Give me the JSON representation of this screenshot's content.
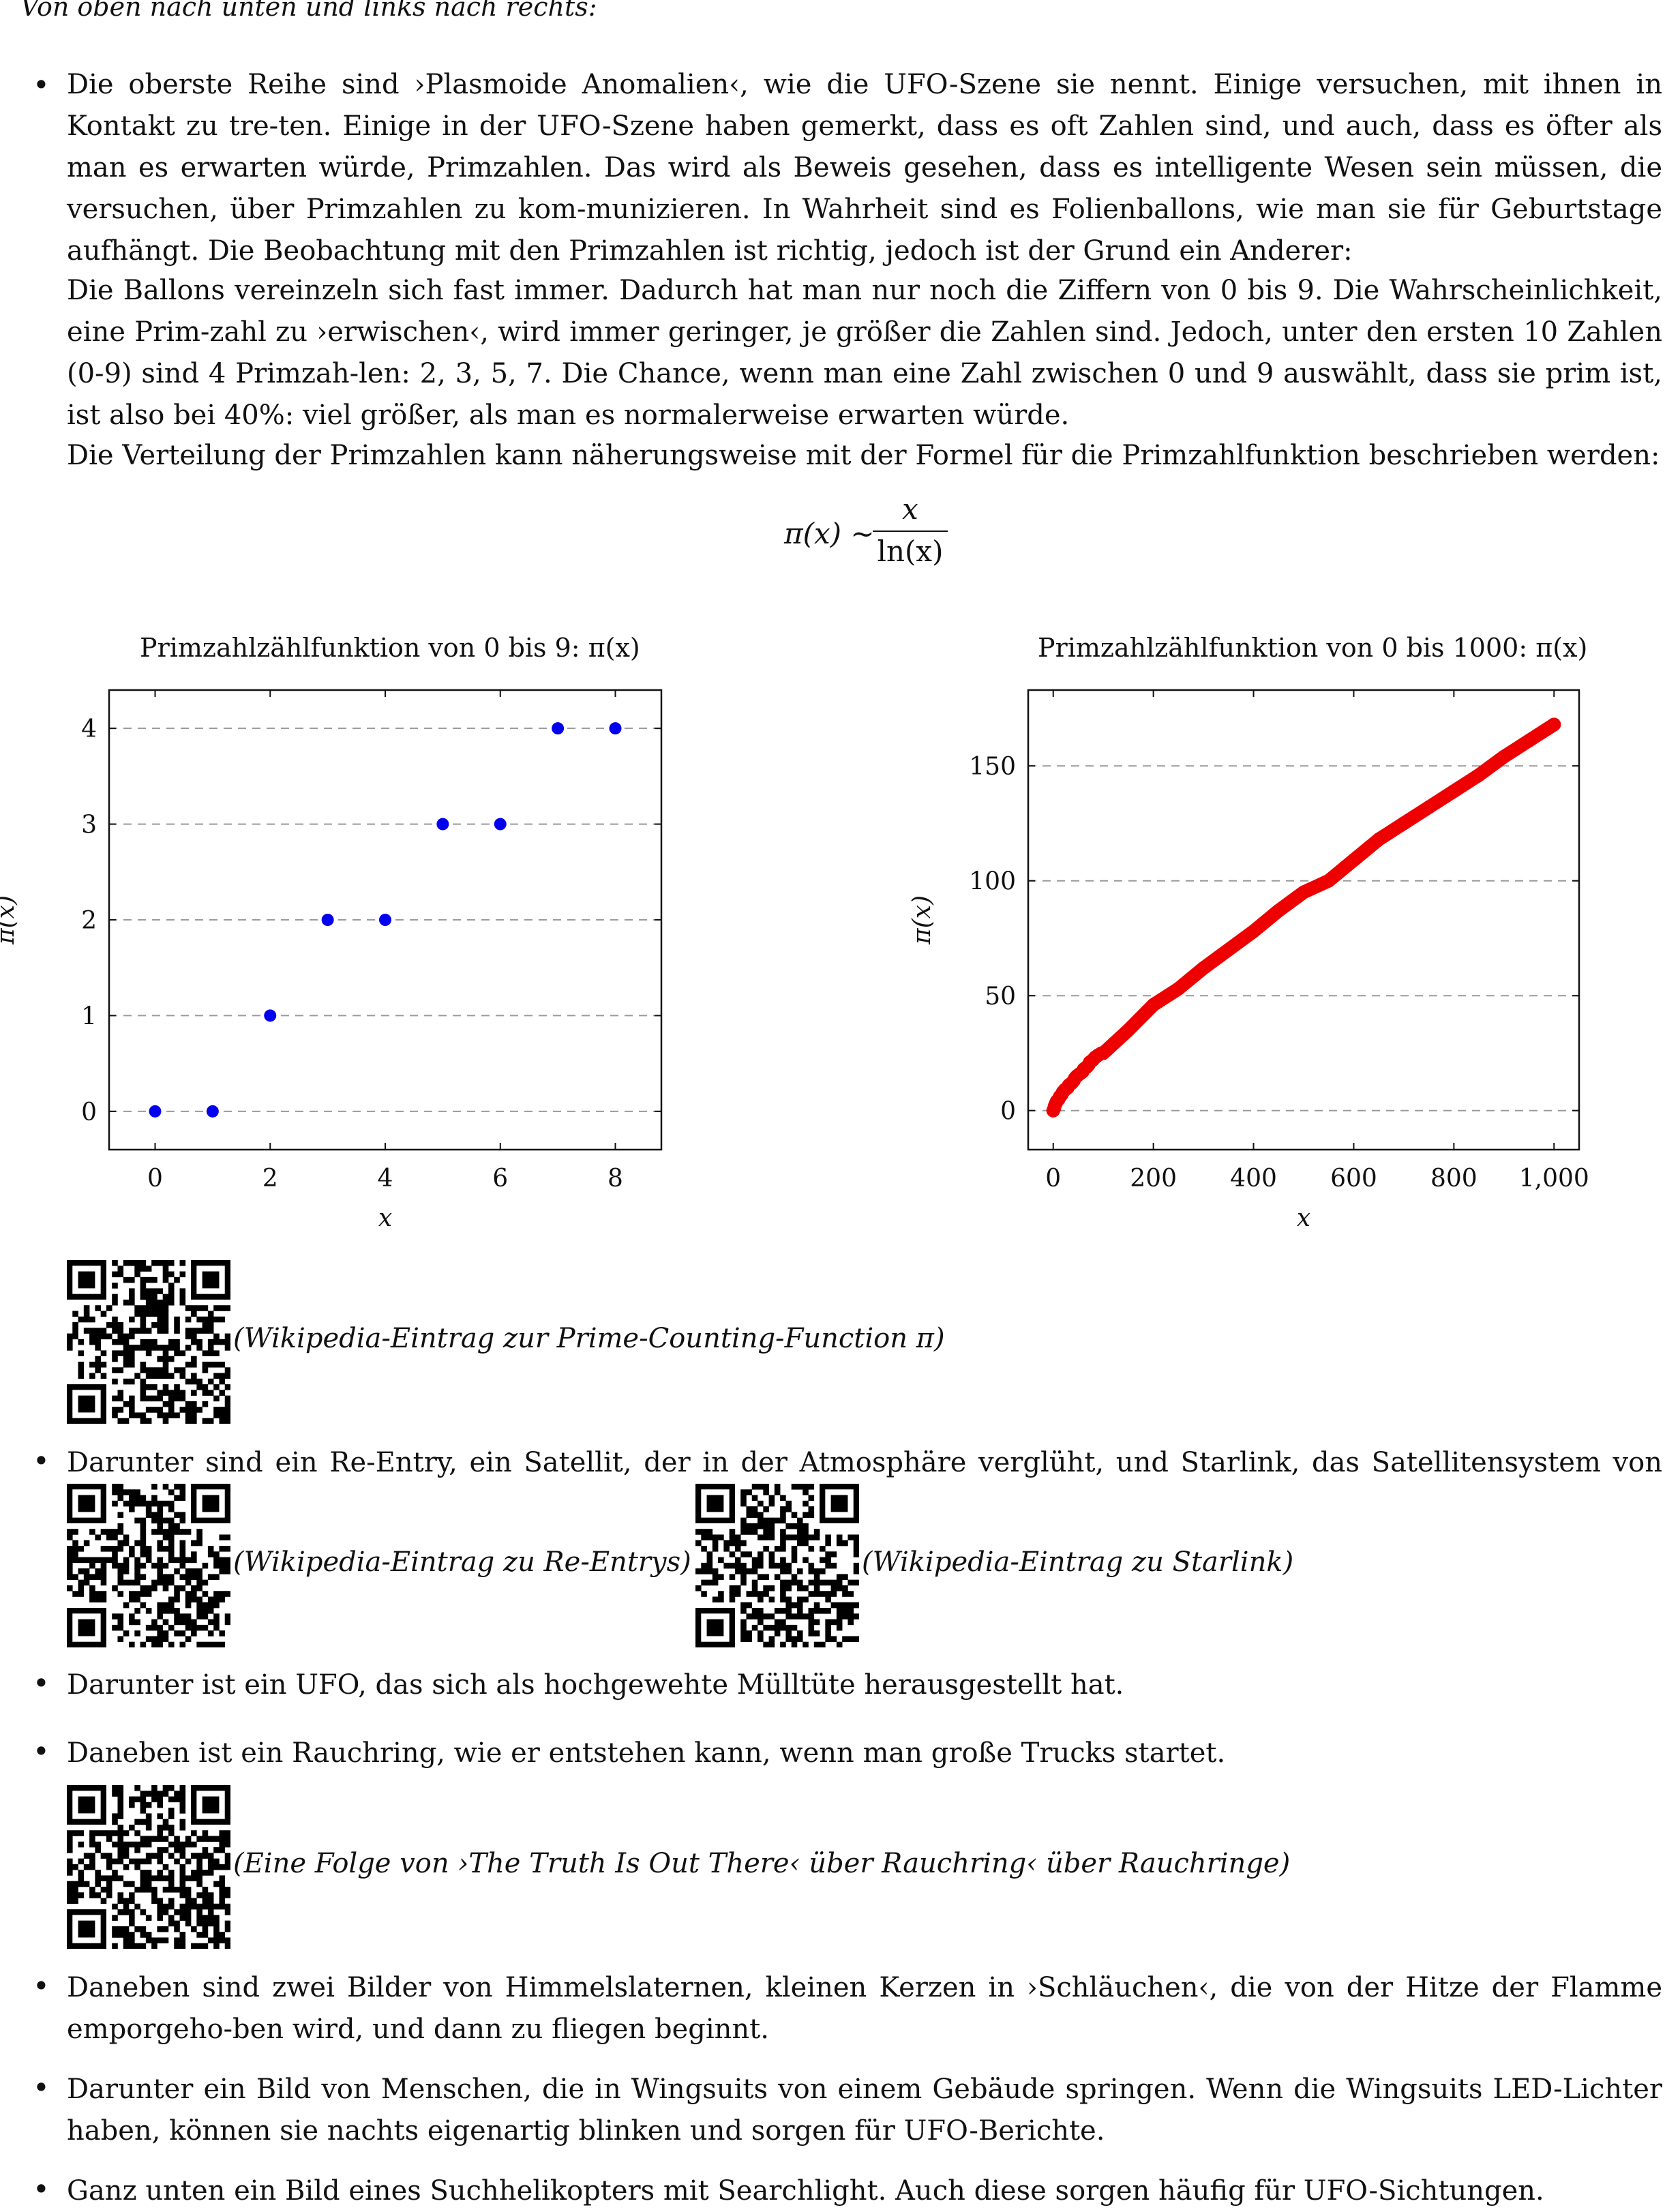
{
  "intro": "Von oben nach unten und links nach rechts:",
  "items": [
    "Die oberste Reihe sind ›Plasmoide Anomalien‹, wie die UFO-Szene sie nennt. Einige versuchen, mit ihnen in Kontakt zu tre-ten. Einige in der UFO-Szene haben gemerkt, dass es oft Zahlen sind, und auch, dass es öfter als man es erwarten würde, Primzahlen. Das wird als Beweis gesehen, dass es intelligente Wesen sein müssen, die versuchen, über Primzahlen zu kom-munizieren. In Wahrheit sind es Folienballons, wie man sie für Geburtstage aufhängt. Die Beobachtung mit den Primzahlen ist richtig, jedoch ist der Grund ein Anderer:",
    "Darunter sind ein Re-Entry, ein Satellit, der in der Atmosphäre verglüht, und Starlink, das Satellitensystem von Musk.",
    "Darunter ist ein UFO, das sich als hochgewehte Mülltüte herausgestellt hat.",
    "Daneben ist ein Rauchring, wie er entstehen kann, wenn man große Trucks startet.",
    "Daneben sind zwei Bilder von Himmelslaternen, kleinen Kerzen in ›Schläuchen‹, die von der Hitze der Flamme emporgeho-ben wird, und dann zu fliegen beginnt.",
    "Darunter ein Bild von Menschen, die in Wingsuits von einem Gebäude springen. Wenn die Wingsuits LED-Lichter haben, können sie nachts eigenartig blinken und sorgen für UFO-Berichte.",
    "Ganz unten ein Bild eines Suchhelikopters mit Searchlight. Auch diese sorgen häufig für UFO-Sichtungen."
  ],
  "paragraphs": [
    "Die Ballons vereinzeln sich fast immer. Dadurch hat man nur noch die Ziffern von 0 bis 9. Die Wahrscheinlichkeit, eine Prim-zahl zu ›erwischen‹, wird immer geringer, je größer die Zahlen sind. Jedoch, unter den ersten 10 Zahlen (0-9) sind 4 Primzah-len: 2, 3, 5, 7. Die Chance, wenn man eine Zahl zwischen 0 und 9 auswählt, dass sie prim ist, ist also bei 40%: viel größer, als man es normalerweise erwarten würde.",
    "Die Verteilung der Primzahlen kann näherungsweise mit der Formel für die Primzahlfunktion beschrieben werden:"
  ],
  "formula": {
    "lhs": "π(x) ∼",
    "numerator": "x",
    "denominator": "ln(x)"
  },
  "qr_captions": {
    "prime_counting": "(Wikipedia-Eintrag zur Prime-Counting-Function π)",
    "reentry": "(Wikipedia-Eintrag zu Re-Entrys)",
    "starlink": "(Wikipedia-Eintrag zu Starlink)",
    "smoke_ring": "(Eine Folge von ›The Truth Is Out There‹ über Rauchring‹ über Rauchringe)"
  },
  "chart_data": [
    {
      "type": "scatter",
      "title": "Primzahlzählfunktion von 0 bis 9: π(x)",
      "xlabel": "x",
      "ylabel": "π(x)",
      "x": [
        0,
        1,
        2,
        3,
        4,
        5,
        6,
        7,
        8
      ],
      "y": [
        0,
        0,
        1,
        2,
        2,
        3,
        3,
        4,
        4
      ],
      "xlim": [
        -0.8,
        8.8
      ],
      "ylim": [
        -0.4,
        4.4
      ],
      "xticks": [
        0,
        2,
        4,
        6,
        8
      ],
      "yticks": [
        0,
        1,
        2,
        3,
        4
      ],
      "grid": "horizontal dashed",
      "color": "#0000ee"
    },
    {
      "type": "scatter",
      "title": "Primzahlzählfunktion von 0 bis 1000: π(x)",
      "xlabel": "x",
      "ylabel": "π(x)",
      "x": [
        0,
        2,
        3,
        5,
        7,
        11,
        13,
        17,
        19,
        23,
        29,
        31,
        37,
        41,
        43,
        47,
        53,
        59,
        61,
        67,
        71,
        73,
        79,
        83,
        89,
        97,
        100,
        150,
        200,
        250,
        300,
        350,
        400,
        450,
        500,
        550,
        600,
        650,
        700,
        750,
        800,
        850,
        900,
        950,
        1000
      ],
      "y": [
        0,
        1,
        2,
        3,
        4,
        5,
        6,
        7,
        8,
        9,
        10,
        11,
        12,
        13,
        14,
        15,
        16,
        17,
        18,
        19,
        20,
        21,
        22,
        23,
        24,
        25,
        25,
        35,
        46,
        53,
        62,
        70,
        78,
        87,
        95,
        100,
        109,
        118,
        125,
        132,
        139,
        146,
        154,
        161,
        168
      ],
      "xlim": [
        -50,
        1050
      ],
      "ylim": [
        -17,
        183
      ],
      "xticks": [
        0,
        200,
        400,
        600,
        800,
        1000
      ],
      "xticklabels": [
        "0",
        "200",
        "400",
        "600",
        "800",
        "1,000"
      ],
      "yticks": [
        0,
        50,
        100,
        150
      ],
      "grid": "horizontal dashed",
      "color": "#ee0000"
    }
  ]
}
